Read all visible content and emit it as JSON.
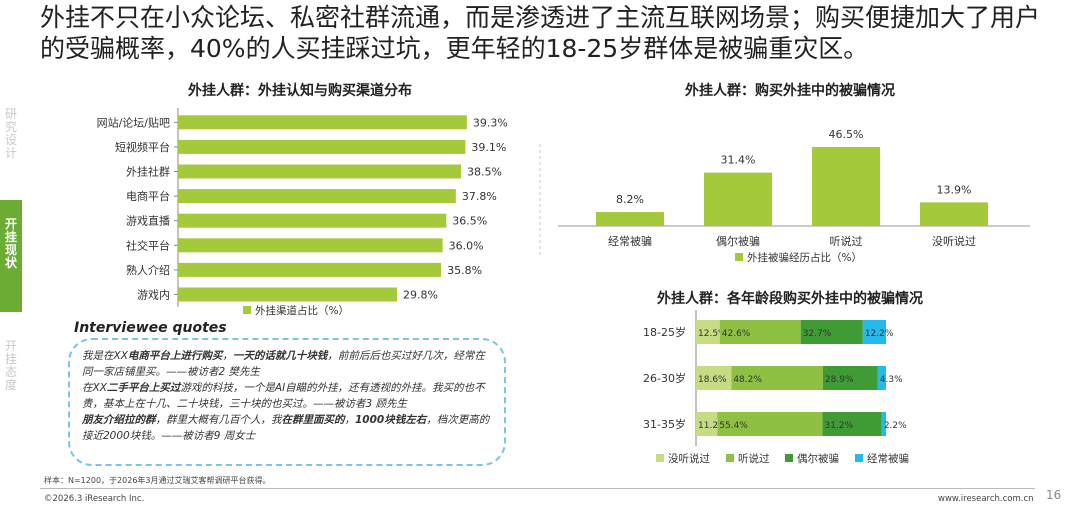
{
  "headline": "外挂不只在小众论坛、私密社群流通，而是渗透进了主流互联网场景；购买便捷加大了用户的受骗概率，40%的人买挂踩过坑，更年轻的18-25岁群体是被骗重灾区。",
  "sidebar": {
    "research": [
      "研",
      "究",
      "设",
      "计"
    ],
    "active": [
      "开",
      "挂",
      "现",
      "状"
    ],
    "attitude": [
      "开",
      "挂",
      "态",
      "度"
    ]
  },
  "colors": {
    "accent_green": "#6cab34",
    "bar_lime": "#a4c93a",
    "stack_pale": "#c5dc84",
    "stack_mid": "#8dc043",
    "stack_dark": "#3f9c35",
    "stack_cyan": "#25b9ec",
    "quote_border": "#7ac4e6"
  },
  "quotes": {
    "title": "Interviewee quotes",
    "lines": [
      [
        {
          "t": "我是在XX"
        },
        {
          "t": "电商平台上进行购买",
          "b": true
        },
        {
          "t": "，"
        },
        {
          "t": "一天的话就几十块钱",
          "b": true
        },
        {
          "t": "，前前后后也买过好几次，经常在同一家店铺里买。——被访者2 樊先生"
        }
      ],
      [
        {
          "t": "在XX"
        },
        {
          "t": "二手平台上买过",
          "b": true
        },
        {
          "t": "游戏的科技，一个是AI自瞄的外挂，还有透视的外挂。我买的也不贵，基本上在十几、二十块钱，三十块的也买过。——被访者3 顾先生"
        }
      ],
      [
        {
          "t": "朋友介绍拉的群",
          "b": true
        },
        {
          "t": "，群里大概有几百个人，我"
        },
        {
          "t": "在群里面买的",
          "b": true
        },
        {
          "t": "，"
        },
        {
          "t": "1000块钱左右",
          "b": true
        },
        {
          "t": "，档次更高的接近2000块钱。——被访者9 周女士"
        }
      ]
    ]
  },
  "footer": {
    "sample": "样本：N=1200，于2026年3月通过艾瑞艾客帮调研平台获得。",
    "copyright": "©2026.3 iResearch Inc.",
    "website": "www.iresearch.com.cn",
    "page": "16"
  },
  "chart_data": [
    {
      "type": "bar",
      "orientation": "horizontal",
      "title": "外挂人群：外挂认知与购买渠道分布",
      "categories": [
        "网站/论坛/贴吧",
        "短视频平台",
        "外挂社群",
        "电商平台",
        "游戏直播",
        "社交平台",
        "熟人介绍",
        "游戏内"
      ],
      "series": [
        {
          "name": "外挂渠道占比（%）",
          "values": [
            39.3,
            39.1,
            38.5,
            37.8,
            36.5,
            36.0,
            35.8,
            29.8
          ]
        }
      ],
      "value_labels": [
        "39.3%",
        "39.1%",
        "38.5%",
        "37.8%",
        "36.5%",
        "36.0%",
        "35.8%",
        "29.8%"
      ],
      "legend": "bottom"
    },
    {
      "type": "bar",
      "title": "外挂人群：购买外挂中的被骗情况",
      "categories": [
        "经常被骗",
        "偶尔被骗",
        "听说过",
        "没听说过"
      ],
      "series": [
        {
          "name": "外挂被骗经历占比（%）",
          "values": [
            8.2,
            31.4,
            46.5,
            13.9
          ]
        }
      ],
      "value_labels": [
        "8.2%",
        "31.4%",
        "46.5%",
        "13.9%"
      ],
      "legend": "bottom"
    },
    {
      "type": "bar",
      "stacked": true,
      "orientation": "horizontal",
      "percent_stacked": true,
      "title": "外挂人群：各年龄段购买外挂中的被骗情况",
      "categories": [
        "18-25岁",
        "26-30岁",
        "31-35岁"
      ],
      "series": [
        {
          "name": "没听说过",
          "values": [
            12.5,
            18.6,
            11.2
          ],
          "labels": [
            "12.5%",
            "18.6%",
            "11.2%"
          ],
          "color": "#c5dc84"
        },
        {
          "name": "听说过",
          "values": [
            42.6,
            48.2,
            55.4
          ],
          "labels": [
            "42.6%",
            "48.2%",
            "55.4%"
          ],
          "color": "#8dc043"
        },
        {
          "name": "偶尔被骗",
          "values": [
            32.7,
            28.9,
            31.2
          ],
          "labels": [
            "32.7%",
            "28.9%",
            "31.2%"
          ],
          "color": "#3f9c35"
        },
        {
          "name": "经常被骗",
          "values": [
            12.2,
            4.3,
            2.2
          ],
          "labels": [
            "12.2%",
            "4.3%",
            "2.2%"
          ],
          "color": "#25b9ec"
        }
      ],
      "legend": "bottom"
    }
  ]
}
